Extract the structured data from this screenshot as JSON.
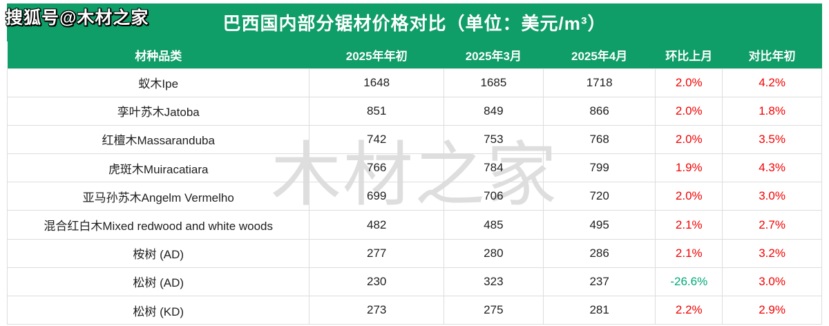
{
  "branding": {
    "sohu_watermark": "搜狐号@木材之家",
    "center_watermark": "木材之家"
  },
  "table": {
    "title": "巴西国内部分锯材价格对比（单位：美元/m³）",
    "columns": [
      "材种品类",
      "2025年年初",
      "2025年3月",
      "2025年4月",
      "环比上月",
      "对比年初"
    ],
    "rows": [
      {
        "species": "蚁木Ipe",
        "start_2025": "1648",
        "mar_2025": "1685",
        "apr_2025": "1718",
        "mom": "2.0%",
        "vs_start": "4.2%",
        "mom_trend": "up"
      },
      {
        "species": "孪叶苏木Jatoba",
        "start_2025": "851",
        "mar_2025": "849",
        "apr_2025": "866",
        "mom": "2.0%",
        "vs_start": "1.8%",
        "mom_trend": "up"
      },
      {
        "species": "红檀木Massaranduba",
        "start_2025": "742",
        "mar_2025": "753",
        "apr_2025": "768",
        "mom": "2.0%",
        "vs_start": "3.5%",
        "mom_trend": "up"
      },
      {
        "species": "虎斑木Muiracatiara",
        "start_2025": "766",
        "mar_2025": "784",
        "apr_2025": "799",
        "mom": "1.9%",
        "vs_start": "4.3%",
        "mom_trend": "up"
      },
      {
        "species": "亚马孙苏木Angelm Vermelho",
        "start_2025": "699",
        "mar_2025": "706",
        "apr_2025": "720",
        "mom": "2.0%",
        "vs_start": "3.0%",
        "mom_trend": "up"
      },
      {
        "species": "混合红白木Mixed redwood and white woods",
        "start_2025": "482",
        "mar_2025": "485",
        "apr_2025": "495",
        "mom": "2.1%",
        "vs_start": "2.7%",
        "mom_trend": "up"
      },
      {
        "species": "桉树 (AD)",
        "start_2025": "277",
        "mar_2025": "280",
        "apr_2025": "286",
        "mom": "2.1%",
        "vs_start": "3.2%",
        "mom_trend": "up"
      },
      {
        "species": "松树 (AD)",
        "start_2025": "230",
        "mar_2025": "323",
        "apr_2025": "237",
        "mom": "-26.6%",
        "vs_start": "3.0%",
        "mom_trend": "down"
      },
      {
        "species": "松树 (KD)",
        "start_2025": "273",
        "mar_2025": "275",
        "apr_2025": "281",
        "mom": "2.2%",
        "vs_start": "2.9%",
        "mom_trend": "up"
      }
    ]
  },
  "colors": {
    "header_green": "#0F9D68",
    "increase_red": "#F40000",
    "decrease_green": "#00A878",
    "grid_line": "#DCDCDC",
    "body_text": "#1E1E1E"
  },
  "chart_data": {
    "type": "table",
    "title": "巴西国内部分锯材价格对比（单位：美元/m³）",
    "unit": "美元/m³",
    "columns": [
      "材种品类",
      "2025年年初",
      "2025年3月",
      "2025年4月",
      "环比上月",
      "对比年初"
    ],
    "rows": [
      [
        "蚁木Ipe",
        1648,
        1685,
        1718,
        "2.0%",
        "4.2%"
      ],
      [
        "孪叶苏木Jatoba",
        851,
        849,
        866,
        "2.0%",
        "1.8%"
      ],
      [
        "红檀木Massaranduba",
        742,
        753,
        768,
        "2.0%",
        "3.5%"
      ],
      [
        "虎斑木Muiracatiara",
        766,
        784,
        799,
        "1.9%",
        "4.3%"
      ],
      [
        "亚马孙苏木Angelm Vermelho",
        699,
        706,
        720,
        "2.0%",
        "3.0%"
      ],
      [
        "混合红白木Mixed redwood and white woods",
        482,
        485,
        495,
        "2.1%",
        "2.7%"
      ],
      [
        "桉树 (AD)",
        277,
        280,
        286,
        "2.1%",
        "3.2%"
      ],
      [
        "松树 (AD)",
        230,
        323,
        237,
        "-26.6%",
        "3.0%"
      ],
      [
        "松树 (KD)",
        273,
        275,
        281,
        "2.2%",
        "2.9%"
      ]
    ]
  }
}
